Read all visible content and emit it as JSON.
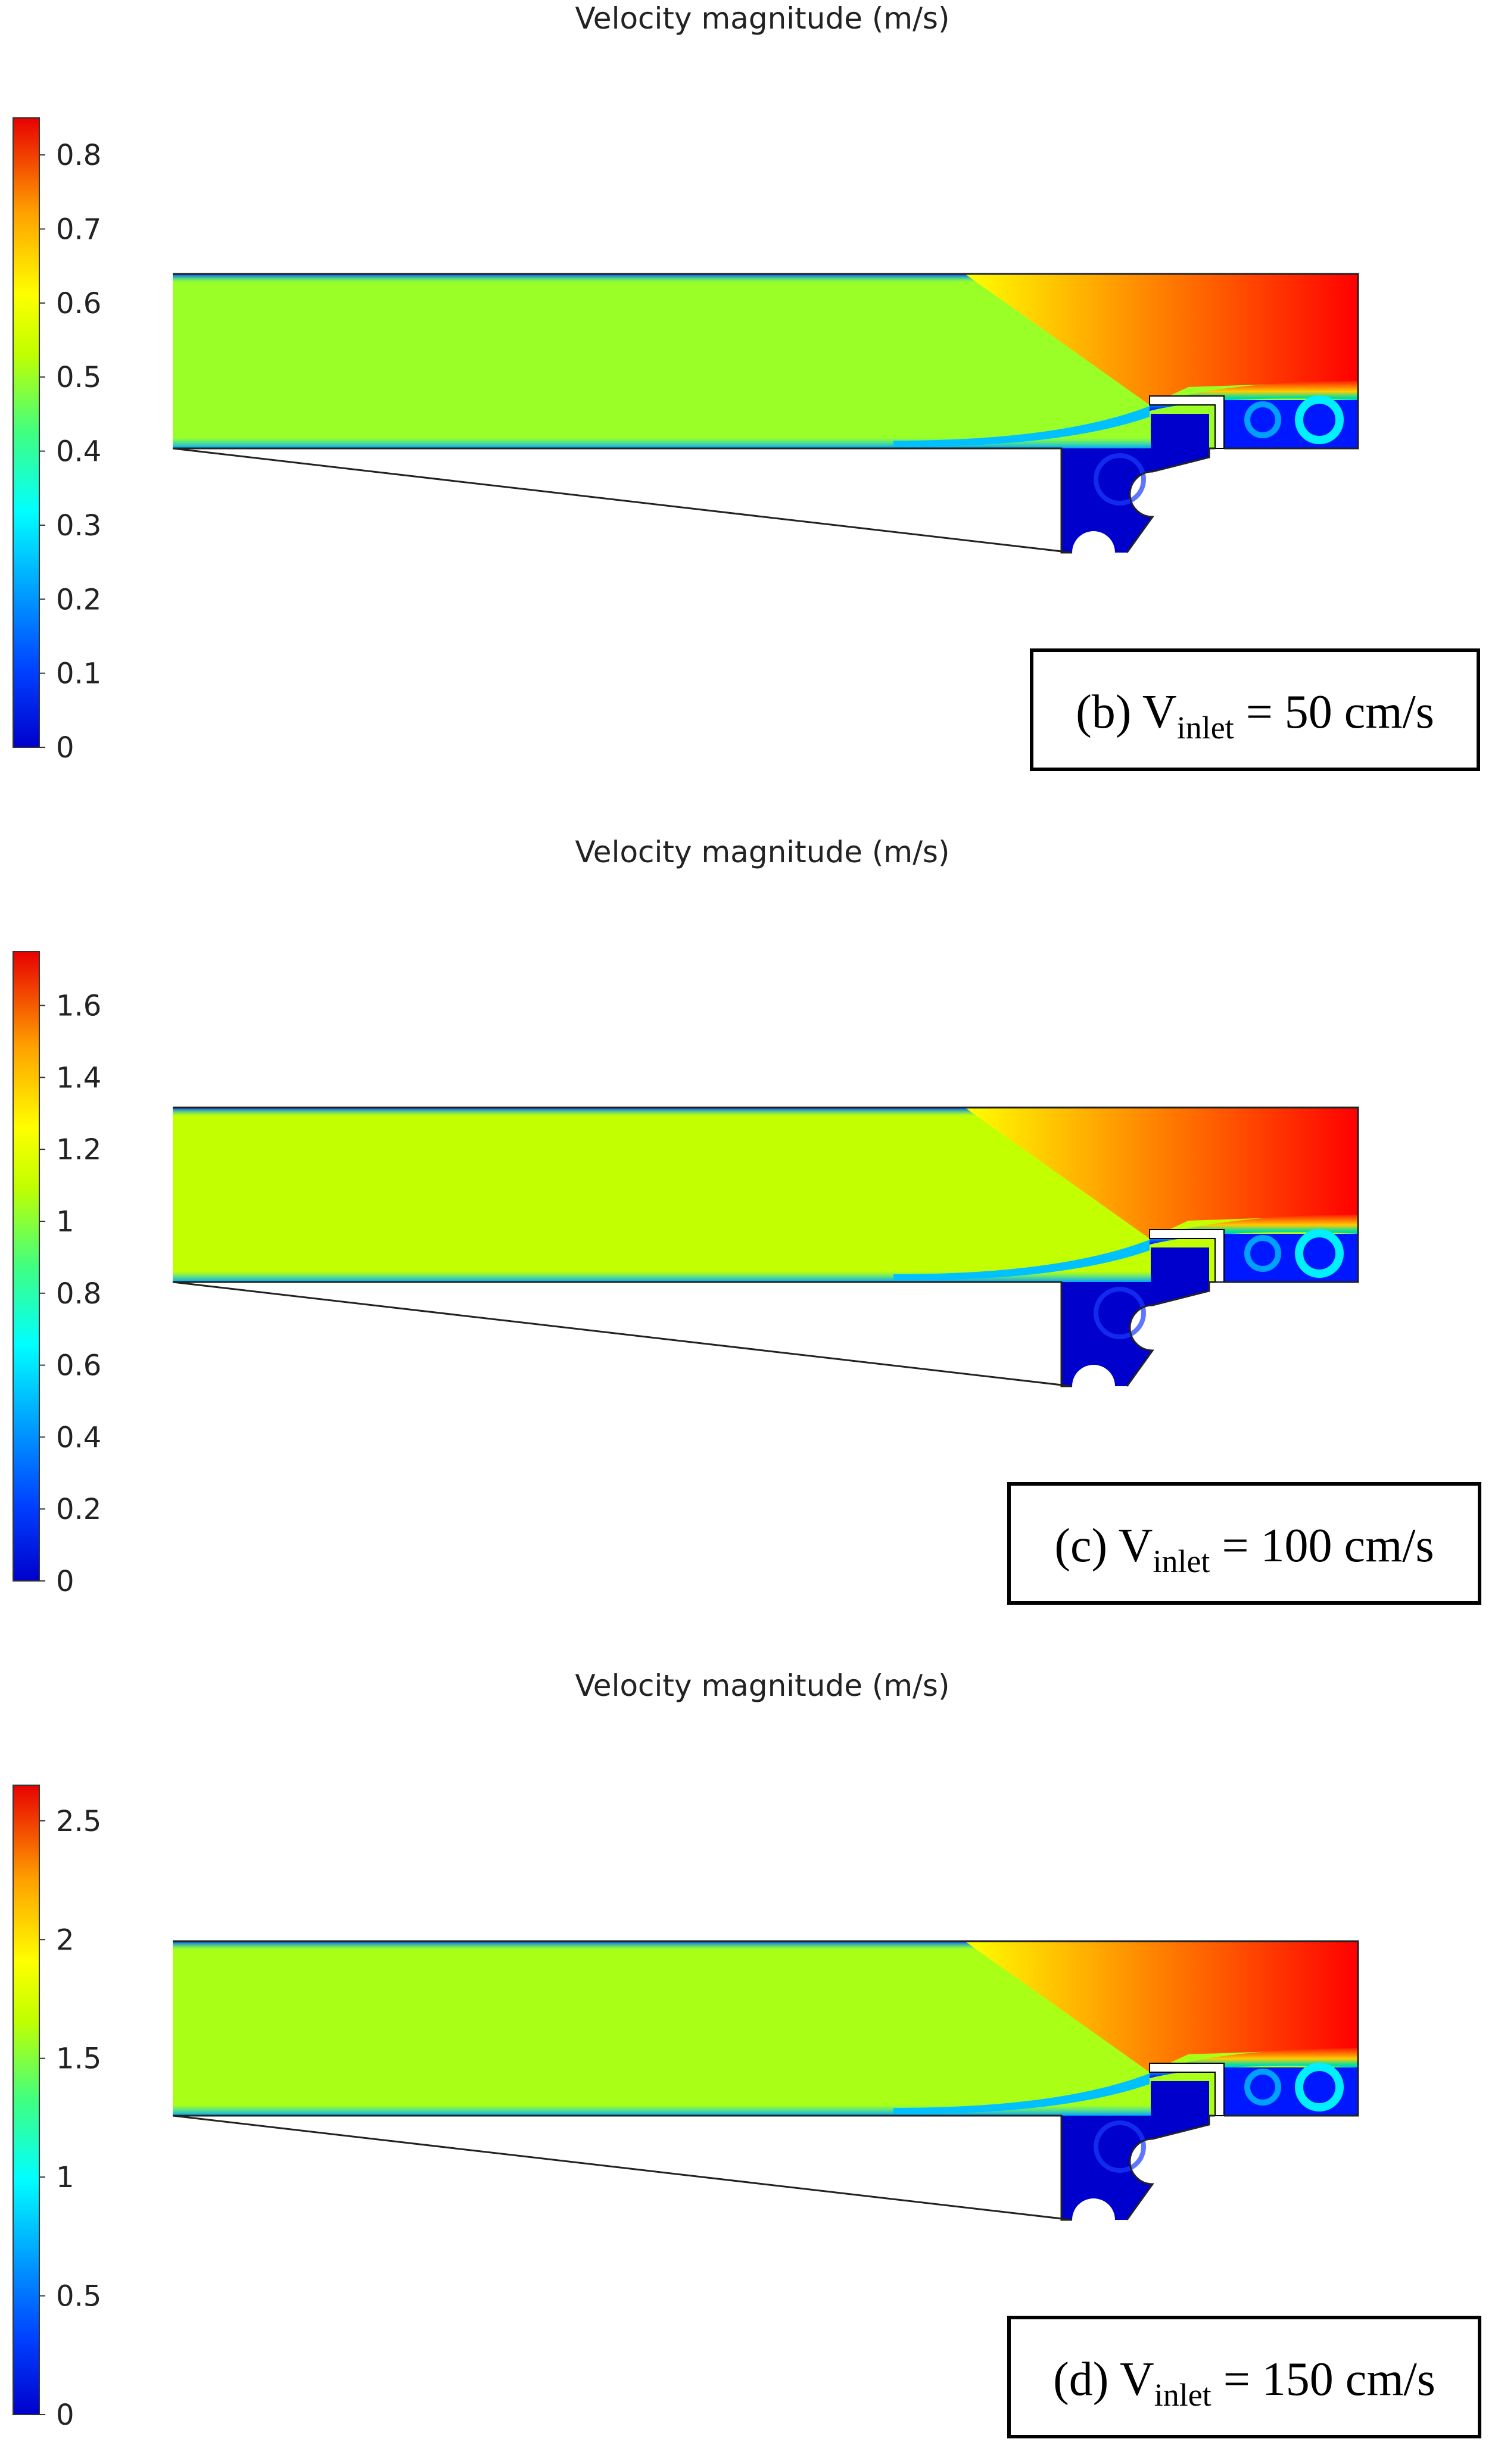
{
  "chart_data": [
    {
      "type": "heatmap",
      "panel": "b",
      "title": "Velocity magnitude (m/s)",
      "colorbar": {
        "min": 0,
        "max": 0.85,
        "ticks": [
          "0",
          "0.1",
          "0.2",
          "0.3",
          "0.4",
          "0.5",
          "0.6",
          "0.7",
          "0.8"
        ],
        "tick_values": [
          0,
          0.1,
          0.2,
          0.3,
          0.4,
          0.5,
          0.6,
          0.7,
          0.8
        ],
        "colormap": "rainbow (blue-cyan-green-yellow-orange-red)"
      },
      "caption": {
        "prefix": "(b) V",
        "sub": "inlet",
        "suffix": " = 50 cm/s"
      },
      "field": {
        "main_channel": 0.5,
        "jet_max": 0.85,
        "cavity": 0
      }
    },
    {
      "type": "heatmap",
      "panel": "c",
      "title": "Velocity magnitude (m/s)",
      "colorbar": {
        "min": 0,
        "max": 1.75,
        "ticks": [
          "0",
          "0.2",
          "0.4",
          "0.6",
          "0.8",
          "1",
          "1.2",
          "1.4",
          "1.6"
        ],
        "tick_values": [
          0,
          0.2,
          0.4,
          0.6,
          0.8,
          1,
          1.2,
          1.4,
          1.6
        ],
        "colormap": "rainbow (blue-cyan-green-yellow-orange-red)"
      },
      "caption": {
        "prefix": "(c) V",
        "sub": "inlet",
        "suffix": " = 100 cm/s"
      },
      "field": {
        "main_channel": 1.1,
        "jet_max": 1.75,
        "cavity": 0
      }
    },
    {
      "type": "heatmap",
      "panel": "d",
      "title": "Velocity magnitude (m/s)",
      "colorbar": {
        "min": 0,
        "max": 2.65,
        "ticks": [
          "0",
          "0.5",
          "1",
          "1.5",
          "2",
          "2.5"
        ],
        "tick_values": [
          0,
          0.5,
          1,
          1.5,
          2,
          2.5
        ],
        "colormap": "rainbow (blue-cyan-green-yellow-orange-red)"
      },
      "caption": {
        "prefix": "(d) V",
        "sub": "inlet",
        "suffix": " = 150 cm/s"
      },
      "field": {
        "main_channel": 1.6,
        "jet_max": 2.65,
        "cavity": 0
      }
    }
  ]
}
